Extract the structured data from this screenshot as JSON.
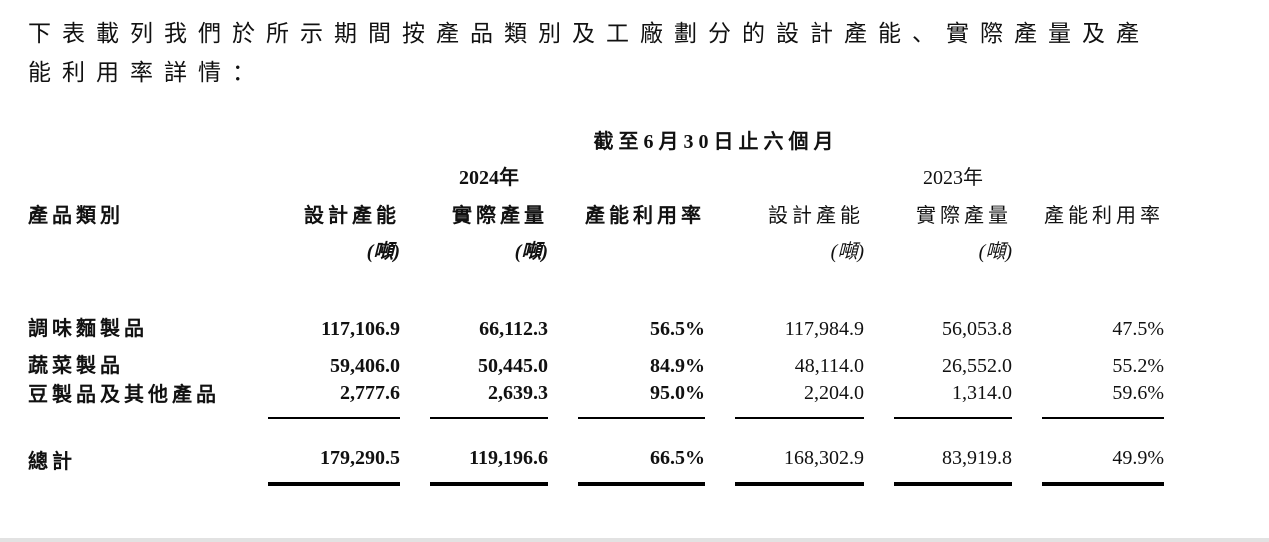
{
  "intro": {
    "line1": "下表載列我們於所示期間按產品類別及工廠劃分的設計產能、實際產量及產",
    "line2": "能利用率詳情："
  },
  "table": {
    "period_header": "截至6月30日止六個月",
    "year_2024": "2024年",
    "year_2023": "2023年",
    "headers": {
      "product": "產品類別",
      "design": "設計產能",
      "actual": "實際產量",
      "utilization": "產能利用率",
      "unit": "(噸)"
    },
    "rows": [
      {
        "name": "調味麵製品",
        "d24": "117,106.9",
        "a24": "66,112.3",
        "u24": "56.5%",
        "d23": "117,984.9",
        "a23": "56,053.8",
        "u23": "47.5%"
      },
      {
        "name": "蔬菜製品",
        "d24": "59,406.0",
        "a24": "50,445.0",
        "u24": "84.9%",
        "d23": "48,114.0",
        "a23": "26,552.0",
        "u23": "55.2%"
      },
      {
        "name": "豆製品及其他產品",
        "d24": "2,777.6",
        "a24": "2,639.3",
        "u24": "95.0%",
        "d23": "2,204.0",
        "a23": "1,314.0",
        "u23": "59.6%"
      }
    ],
    "total": {
      "name": "總計",
      "d24": "179,290.5",
      "a24": "119,196.6",
      "u24": "66.5%",
      "d23": "168,302.9",
      "a23": "83,919.8",
      "u23": "49.9%"
    }
  }
}
